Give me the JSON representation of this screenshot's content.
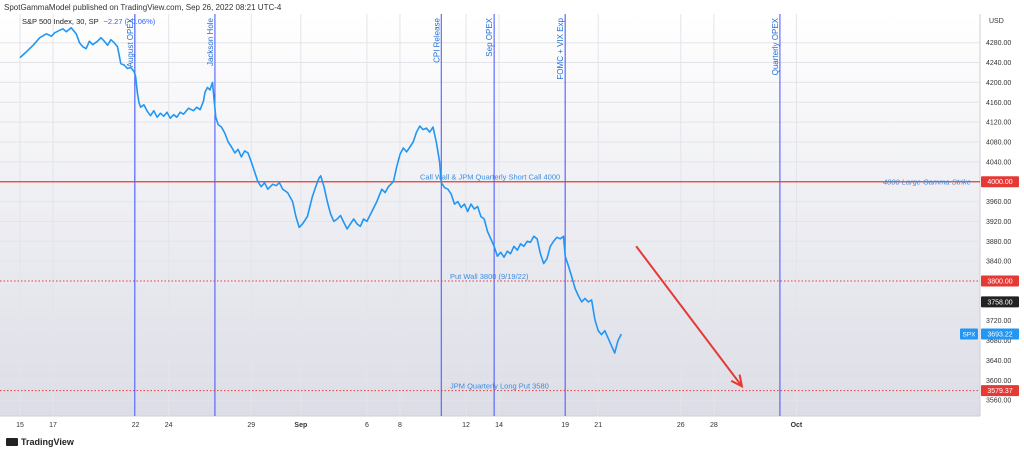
{
  "header": {
    "publisher": "SpotGammaModel published on TradingView.com, Sep 26, 2022 08:21 UTC-4",
    "symbol": "S&P 500 Index, 30, SP",
    "change": "−2.27 (−0.06%)",
    "currency": "USD"
  },
  "footer": {
    "brand": "TradingView"
  },
  "chart_data": {
    "type": "line",
    "title": "S&P 500 Index, 30, SP",
    "ylabel": "USD",
    "ylim": [
      3540,
      4330
    ],
    "grid": true,
    "x_tick_labels": [
      {
        "day": 0,
        "label": "15"
      },
      {
        "day": 2,
        "label": "17"
      },
      {
        "day": 7,
        "label": "22"
      },
      {
        "day": 9,
        "label": "24"
      },
      {
        "day": 14,
        "label": "29"
      },
      {
        "day": 17,
        "label": "Sep"
      },
      {
        "day": 21,
        "label": "6"
      },
      {
        "day": 23,
        "label": "8"
      },
      {
        "day": 27,
        "label": "12"
      },
      {
        "day": 29,
        "label": "14"
      },
      {
        "day": 33,
        "label": "19"
      },
      {
        "day": 35,
        "label": "21"
      },
      {
        "day": 40,
        "label": "26"
      },
      {
        "day": 42,
        "label": "28"
      },
      {
        "day": 47,
        "label": "Oct"
      }
    ],
    "y_ticks": [
      3560,
      3600,
      3640,
      3680,
      3720,
      3840,
      3880,
      3920,
      3960,
      4040,
      4080,
      4120,
      4160,
      4200,
      4240,
      4280
    ],
    "series": [
      {
        "name": "SPX",
        "color": "#2196f3",
        "points": [
          [
            0,
            4250
          ],
          [
            0.4,
            4262
          ],
          [
            0.8,
            4275
          ],
          [
            1.2,
            4290
          ],
          [
            1.6,
            4298
          ],
          [
            1.9,
            4293
          ],
          [
            2.1,
            4300
          ],
          [
            2.4,
            4305
          ],
          [
            2.6,
            4308
          ],
          [
            2.8,
            4302
          ],
          [
            3.1,
            4310
          ],
          [
            3.4,
            4298
          ],
          [
            3.6,
            4280
          ],
          [
            3.8,
            4272
          ],
          [
            4.0,
            4268
          ],
          [
            4.2,
            4283
          ],
          [
            4.4,
            4276
          ],
          [
            4.7,
            4283
          ],
          [
            4.9,
            4290
          ],
          [
            5.1,
            4283
          ],
          [
            5.3,
            4275
          ],
          [
            5.5,
            4286
          ],
          [
            5.7,
            4280
          ],
          [
            5.9,
            4272
          ],
          [
            6.1,
            4238
          ],
          [
            6.3,
            4235
          ],
          [
            6.5,
            4228
          ],
          [
            6.7,
            4230
          ],
          [
            6.9,
            4222
          ],
          [
            7.0,
            4212
          ],
          [
            7.1,
            4180
          ],
          [
            7.2,
            4160
          ],
          [
            7.3,
            4150
          ],
          [
            7.5,
            4155
          ],
          [
            7.7,
            4142
          ],
          [
            7.9,
            4133
          ],
          [
            8.1,
            4143
          ],
          [
            8.3,
            4130
          ],
          [
            8.5,
            4138
          ],
          [
            8.7,
            4132
          ],
          [
            8.9,
            4140
          ],
          [
            9.1,
            4128
          ],
          [
            9.3,
            4135
          ],
          [
            9.5,
            4130
          ],
          [
            9.7,
            4140
          ],
          [
            9.9,
            4136
          ],
          [
            10.2,
            4148
          ],
          [
            10.5,
            4143
          ],
          [
            10.7,
            4150
          ],
          [
            10.9,
            4145
          ],
          [
            11.1,
            4162
          ],
          [
            11.2,
            4180
          ],
          [
            11.35,
            4190
          ],
          [
            11.5,
            4185
          ],
          [
            11.65,
            4200
          ],
          [
            11.75,
            4165
          ],
          [
            11.85,
            4130
          ],
          [
            12.0,
            4115
          ],
          [
            12.2,
            4110
          ],
          [
            12.4,
            4098
          ],
          [
            12.6,
            4080
          ],
          [
            12.8,
            4070
          ],
          [
            13.0,
            4058
          ],
          [
            13.2,
            4065
          ],
          [
            13.4,
            4050
          ],
          [
            13.6,
            4062
          ],
          [
            13.8,
            4058
          ],
          [
            14.0,
            4040
          ],
          [
            14.2,
            4020
          ],
          [
            14.4,
            4000
          ],
          [
            14.6,
            3990
          ],
          [
            14.8,
            3998
          ],
          [
            15.0,
            3985
          ],
          [
            15.3,
            3995
          ],
          [
            15.5,
            3992
          ],
          [
            15.7,
            3998
          ],
          [
            15.9,
            3985
          ],
          [
            16.2,
            3978
          ],
          [
            16.5,
            3960
          ],
          [
            16.7,
            3930
          ],
          [
            16.9,
            3908
          ],
          [
            17.1,
            3915
          ],
          [
            17.4,
            3930
          ],
          [
            17.7,
            3970
          ],
          [
            17.9,
            3990
          ],
          [
            18.1,
            4007
          ],
          [
            18.2,
            4012
          ],
          [
            18.4,
            3990
          ],
          [
            18.6,
            3960
          ],
          [
            18.8,
            3935
          ],
          [
            19.0,
            3920
          ],
          [
            19.2,
            3925
          ],
          [
            19.4,
            3932
          ],
          [
            19.6,
            3918
          ],
          [
            19.8,
            3905
          ],
          [
            20.0,
            3915
          ],
          [
            20.2,
            3925
          ],
          [
            20.4,
            3915
          ],
          [
            20.6,
            3910
          ],
          [
            20.8,
            3925
          ],
          [
            21.0,
            3920
          ],
          [
            21.3,
            3940
          ],
          [
            21.6,
            3960
          ],
          [
            21.9,
            3985
          ],
          [
            22.1,
            3978
          ],
          [
            22.3,
            3990
          ],
          [
            22.6,
            4000
          ],
          [
            22.8,
            4030
          ],
          [
            23.0,
            4055
          ],
          [
            23.2,
            4068
          ],
          [
            23.4,
            4060
          ],
          [
            23.6,
            4070
          ],
          [
            23.8,
            4080
          ],
          [
            24.0,
            4100
          ],
          [
            24.2,
            4112
          ],
          [
            24.4,
            4105
          ],
          [
            24.6,
            4108
          ],
          [
            24.8,
            4100
          ],
          [
            25.0,
            4110
          ],
          [
            25.2,
            4080
          ],
          [
            25.4,
            4040
          ],
          [
            25.5,
            3998
          ],
          [
            25.7,
            3988
          ],
          [
            25.9,
            3985
          ],
          [
            26.1,
            3975
          ],
          [
            26.3,
            3955
          ],
          [
            26.5,
            3960
          ],
          [
            26.7,
            3948
          ],
          [
            26.9,
            3955
          ],
          [
            27.1,
            3940
          ],
          [
            27.3,
            3955
          ],
          [
            27.5,
            3945
          ],
          [
            27.7,
            3950
          ],
          [
            27.9,
            3930
          ],
          [
            28.1,
            3925
          ],
          [
            28.3,
            3900
          ],
          [
            28.5,
            3885
          ],
          [
            28.7,
            3870
          ],
          [
            28.9,
            3850
          ],
          [
            29.1,
            3858
          ],
          [
            29.3,
            3848
          ],
          [
            29.5,
            3860
          ],
          [
            29.7,
            3855
          ],
          [
            29.9,
            3870
          ],
          [
            30.1,
            3862
          ],
          [
            30.3,
            3875
          ],
          [
            30.5,
            3870
          ],
          [
            30.7,
            3880
          ],
          [
            30.9,
            3878
          ],
          [
            31.1,
            3890
          ],
          [
            31.3,
            3885
          ],
          [
            31.5,
            3855
          ],
          [
            31.7,
            3835
          ],
          [
            31.9,
            3845
          ],
          [
            32.1,
            3870
          ],
          [
            32.3,
            3880
          ],
          [
            32.5,
            3888
          ],
          [
            32.7,
            3885
          ],
          [
            32.9,
            3890
          ],
          [
            33.0,
            3850
          ],
          [
            33.2,
            3830
          ],
          [
            33.4,
            3808
          ],
          [
            33.6,
            3785
          ],
          [
            33.8,
            3770
          ],
          [
            34.0,
            3758
          ],
          [
            34.2,
            3765
          ],
          [
            34.4,
            3758
          ],
          [
            34.6,
            3762
          ],
          [
            34.8,
            3722
          ],
          [
            35.0,
            3700
          ],
          [
            35.2,
            3692
          ],
          [
            35.4,
            3700
          ],
          [
            35.6,
            3685
          ],
          [
            35.8,
            3670
          ],
          [
            36.0,
            3655
          ],
          [
            36.2,
            3680
          ],
          [
            36.4,
            3693
          ]
        ]
      }
    ],
    "vertical_events": [
      {
        "day": 6.95,
        "label": "August OPEX"
      },
      {
        "day": 11.8,
        "label": "Jackson Hole"
      },
      {
        "day": 25.5,
        "label": "CPI Release"
      },
      {
        "day": 28.7,
        "label": "Sep OPEX"
      },
      {
        "day": 33.0,
        "label": "FOMC + VIX Exp"
      },
      {
        "day": 46.0,
        "label": "Quarterly OPEX"
      }
    ],
    "horizontal_levels": [
      {
        "value": 4000,
        "style": "solid",
        "label": "Call Wall & JPM Quarterly Short Call 4000",
        "label2": "4000 Large Gamma Strike",
        "badge": "4000.00"
      },
      {
        "value": 3800,
        "style": "dotted",
        "label": "Put Wall 3800 (9/19/22)",
        "badge": "3800.00"
      },
      {
        "value": 3579.37,
        "style": "dotted",
        "label": "JPM Quarterly Long Put 3580",
        "badge": "3579.37"
      }
    ],
    "price_markers": [
      {
        "value": 3758,
        "text": "3758.00",
        "kind": "neutral"
      },
      {
        "value": 3693.22,
        "text": "3693.22",
        "tag": "SPX",
        "kind": "last"
      }
    ],
    "projection_arrow": {
      "from": [
        37.3,
        3870
      ],
      "to": [
        43.7,
        3588
      ],
      "color": "#e53935"
    },
    "colors": {
      "line": "#2196f3",
      "level": "#e53935",
      "event": "#3f51ff",
      "last_price": "#2196f3"
    }
  }
}
